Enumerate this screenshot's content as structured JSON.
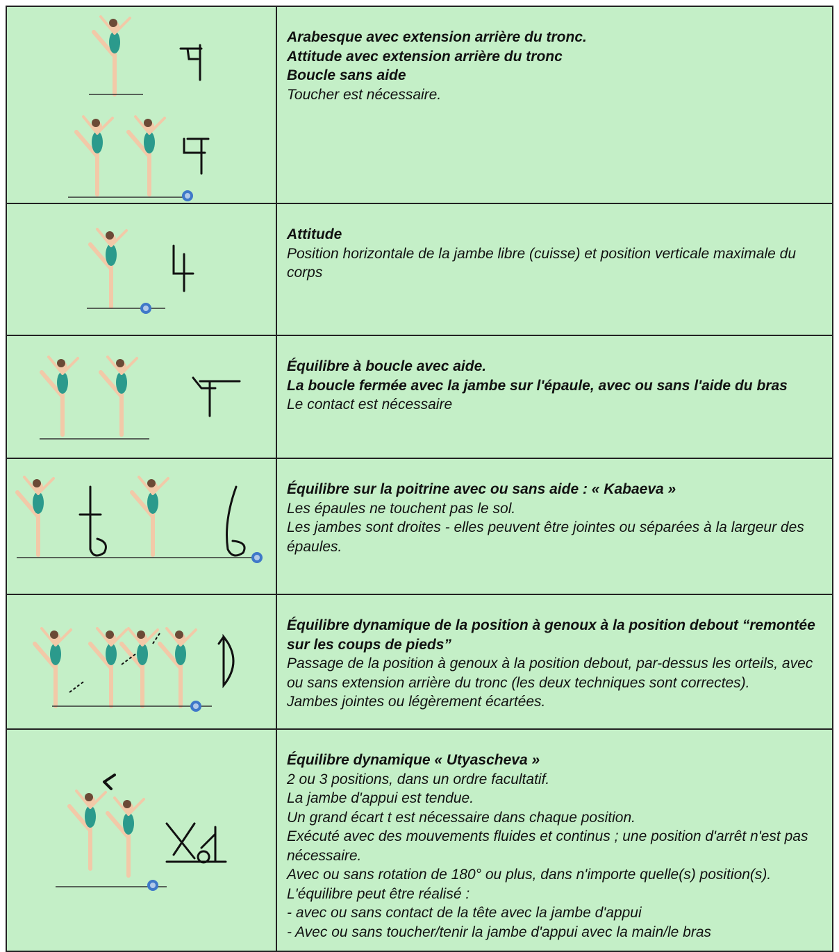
{
  "table": {
    "rows": [
      {
        "title_lines": [
          "Arabesque avec extension arrière du tronc.",
          "Attitude avec extension arrière du tronc",
          "Boucle sans aide"
        ],
        "lines": [
          "Toucher est nécessaire."
        ]
      },
      {
        "title_lines": [
          "Attitude"
        ],
        "lines": [
          "Position horizontale de la jambe libre (cuisse) et position verticale maximale du corps"
        ]
      },
      {
        "title_lines": [
          "Équilibre à boucle avec aide.",
          "La boucle fermée avec la jambe sur l'épaule, avec ou sans l'aide du bras"
        ],
        "lines": [
          "Le contact est nécessaire"
        ]
      },
      {
        "title_lines": [
          "Équilibre sur la poitrine avec ou sans aide : « Kabaeva »"
        ],
        "lines": [
          "Les épaules ne touchent pas le sol.",
          "Les jambes sont droites - elles peuvent être jointes ou séparées à la largeur des épaules."
        ]
      },
      {
        "title_lines": [
          "Équilibre dynamique de la position à genoux à la position debout “remontée sur les coups de pieds”"
        ],
        "lines": [
          "Passage de la position à genoux à la position debout, par-dessus les orteils, avec ou sans extension arrière du tronc (les deux techniques sont correctes).",
          "Jambes jointes ou légèrement écartées."
        ]
      },
      {
        "title_lines": [
          "Équilibre dynamique « Utyascheva »"
        ],
        "lines": [
          "2 ou 3 positions, dans un ordre facultatif.",
          "La jambe d'appui est tendue.",
          "Un grand écart t est nécessaire dans chaque position.",
          "Exécuté avec des mouvements fluides et continus ; une position d'arrêt n'est pas nécessaire.",
          "Avec ou sans rotation de 180° ou plus, dans n'importe quelle(s) position(s).",
          "L'équilibre peut être réalisé :",
          "- avec ou sans contact de la tête avec la jambe d'appui",
          "- Avec ou sans toucher/tenir la jambe d'appui avec la main/le bras"
        ]
      }
    ]
  }
}
